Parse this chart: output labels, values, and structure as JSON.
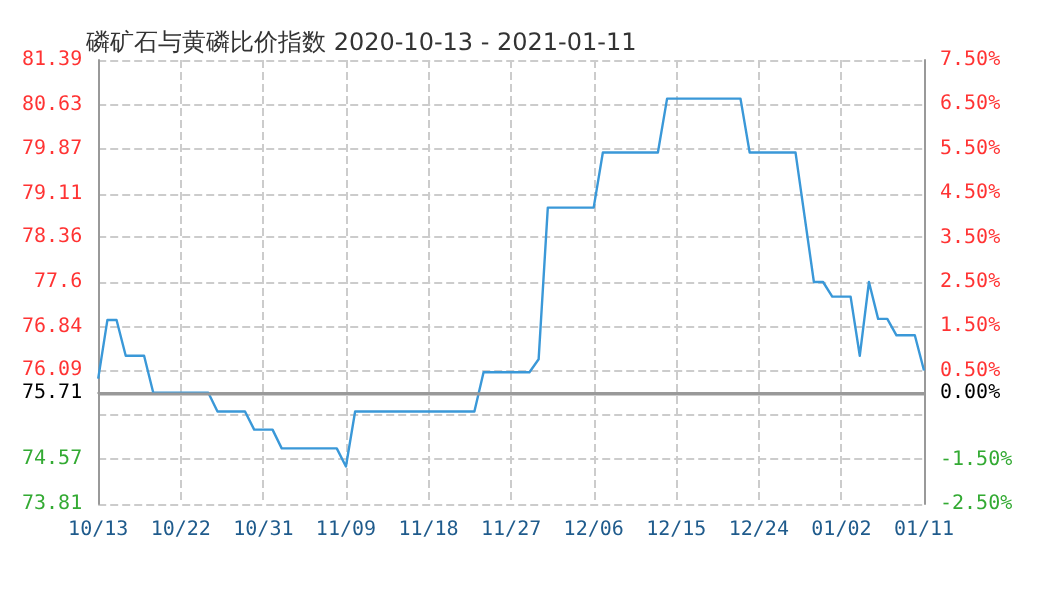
{
  "chart_data": {
    "type": "line",
    "title": "磷矿石与黄磷比价指数 2020-10-13 - 2021-01-11",
    "x": [
      "2020-10-13",
      "2020-10-14",
      "2020-10-15",
      "2020-10-16",
      "2020-10-18",
      "2020-10-19",
      "2020-10-25",
      "2020-10-26",
      "2020-10-29",
      "2020-10-30",
      "2020-11-01",
      "2020-11-02",
      "2020-11-08",
      "2020-11-09",
      "2020-11-10",
      "2020-11-23",
      "2020-11-24",
      "2020-11-29",
      "2020-11-30",
      "2020-12-01",
      "2020-12-06",
      "2020-12-07",
      "2020-12-13",
      "2020-12-14",
      "2020-12-22",
      "2020-12-23",
      "2020-12-28",
      "2020-12-30",
      "2020-12-31",
      "2021-01-01",
      "2021-01-03",
      "2021-01-04",
      "2021-01-05",
      "2021-01-06",
      "2021-01-07",
      "2021-01-08",
      "2021-01-10",
      "2021-01-11"
    ],
    "series": [
      {
        "color": "#3a98d8",
        "values": [
          75.95,
          76.95,
          76.95,
          76.34,
          76.34,
          75.71,
          75.71,
          75.39,
          75.39,
          75.08,
          75.08,
          74.76,
          74.76,
          74.45,
          75.39,
          75.39,
          76.06,
          76.06,
          76.28,
          78.87,
          78.87,
          79.81,
          79.81,
          80.73,
          80.73,
          79.81,
          79.81,
          77.6,
          77.6,
          77.35,
          77.35,
          76.34,
          77.6,
          76.97,
          76.97,
          76.69,
          76.69,
          76.09
        ]
      }
    ],
    "xlim": [
      "2020-10-13",
      "2021-01-11"
    ],
    "xticks": [
      {
        "value": "2020-10-13",
        "label": "10/13"
      },
      {
        "value": "2020-10-22",
        "label": "10/22"
      },
      {
        "value": "2020-10-31",
        "label": "10/31"
      },
      {
        "value": "2020-11-09",
        "label": "11/09"
      },
      {
        "value": "2020-11-18",
        "label": "11/18"
      },
      {
        "value": "2020-11-27",
        "label": "11/27"
      },
      {
        "value": "2020-12-06",
        "label": "12/06"
      },
      {
        "value": "2020-12-15",
        "label": "12/15"
      },
      {
        "value": "2020-12-24",
        "label": "12/24"
      },
      {
        "value": "2021-01-02",
        "label": "01/02"
      },
      {
        "value": "2021-01-11",
        "label": "01/11"
      }
    ],
    "ylim": [
      73.81,
      81.39
    ],
    "yticks": [
      73.81,
      74.57,
      {
        "value": 75.33,
        "label": null
      },
      75.71,
      76.09,
      76.84,
      77.6,
      78.36,
      79.11,
      79.87,
      80.63,
      81.39
    ],
    "y2lim": [
      -2.5,
      7.5
    ],
    "y2ticks": [
      {
        "value": -2.5,
        "label": "-2.50%"
      },
      {
        "value": -1.5,
        "label": "-1.50%"
      },
      {
        "value": 0,
        "label": "0.00%"
      },
      {
        "value": 0.5,
        "label": "0.50%"
      },
      {
        "value": 1.5,
        "label": "1.50%"
      },
      {
        "value": 2.5,
        "label": "2.50%"
      },
      {
        "value": 3.5,
        "label": "3.50%"
      },
      {
        "value": 4.5,
        "label": "4.50%"
      },
      {
        "value": 5.5,
        "label": "5.50%"
      },
      {
        "value": 6.5,
        "label": "6.50%"
      },
      {
        "value": 7.5,
        "label": "7.50%"
      }
    ],
    "ref_lines": [
      {
        "axis": "y",
        "value": 75.71,
        "color": "#999999",
        "line_style": "solid"
      }
    ],
    "grid": true,
    "marker": "none",
    "line_style": "solid"
  }
}
